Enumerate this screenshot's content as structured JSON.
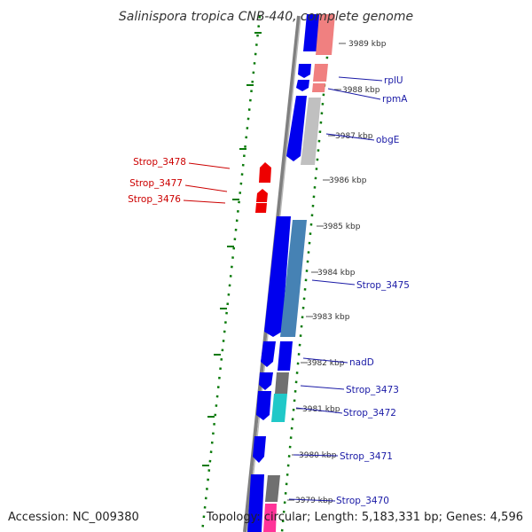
{
  "title": "Salinispora tropica CNB-440, complete genome",
  "accession": "Accession: NC_009380",
  "topology": "Topology: circular; Length: 5,183,331 bp; Genes: 4,596",
  "kbp_ticks": [
    "3989 kbp",
    "3988 kbp",
    "3987 kbp",
    "3986 kbp",
    "3985 kbp",
    "3984 kbp",
    "3983 kbp",
    "3982 kbp",
    "3981 kbp",
    "3980 kbp",
    "3979 kbp"
  ],
  "gene_labels_right": [
    "rplU",
    "rpmA",
    "obgE",
    "Strop_3475",
    "nadD",
    "Strop_3473",
    "Strop_3472",
    "Strop_3471",
    "Strop_3470"
  ],
  "gene_labels_left": [
    "Strop_3478",
    "Strop_3477",
    "Strop_3476"
  ],
  "colors": {
    "gene_forward": "#0000ee",
    "gene_reverse": "#ee0000",
    "cds_pink": "#f08080",
    "cds_grey": "#c0c0c0",
    "cds_steelblue": "#4682b4",
    "cds_darkgrey": "#707070",
    "cds_cyan": "#20c8c8",
    "cds_magenta": "#ff3399",
    "gc_skew_green": "#0a7a0a",
    "backbone": "#808080",
    "label_blue": "#1a1aa6",
    "label_red": "#cc0000"
  }
}
